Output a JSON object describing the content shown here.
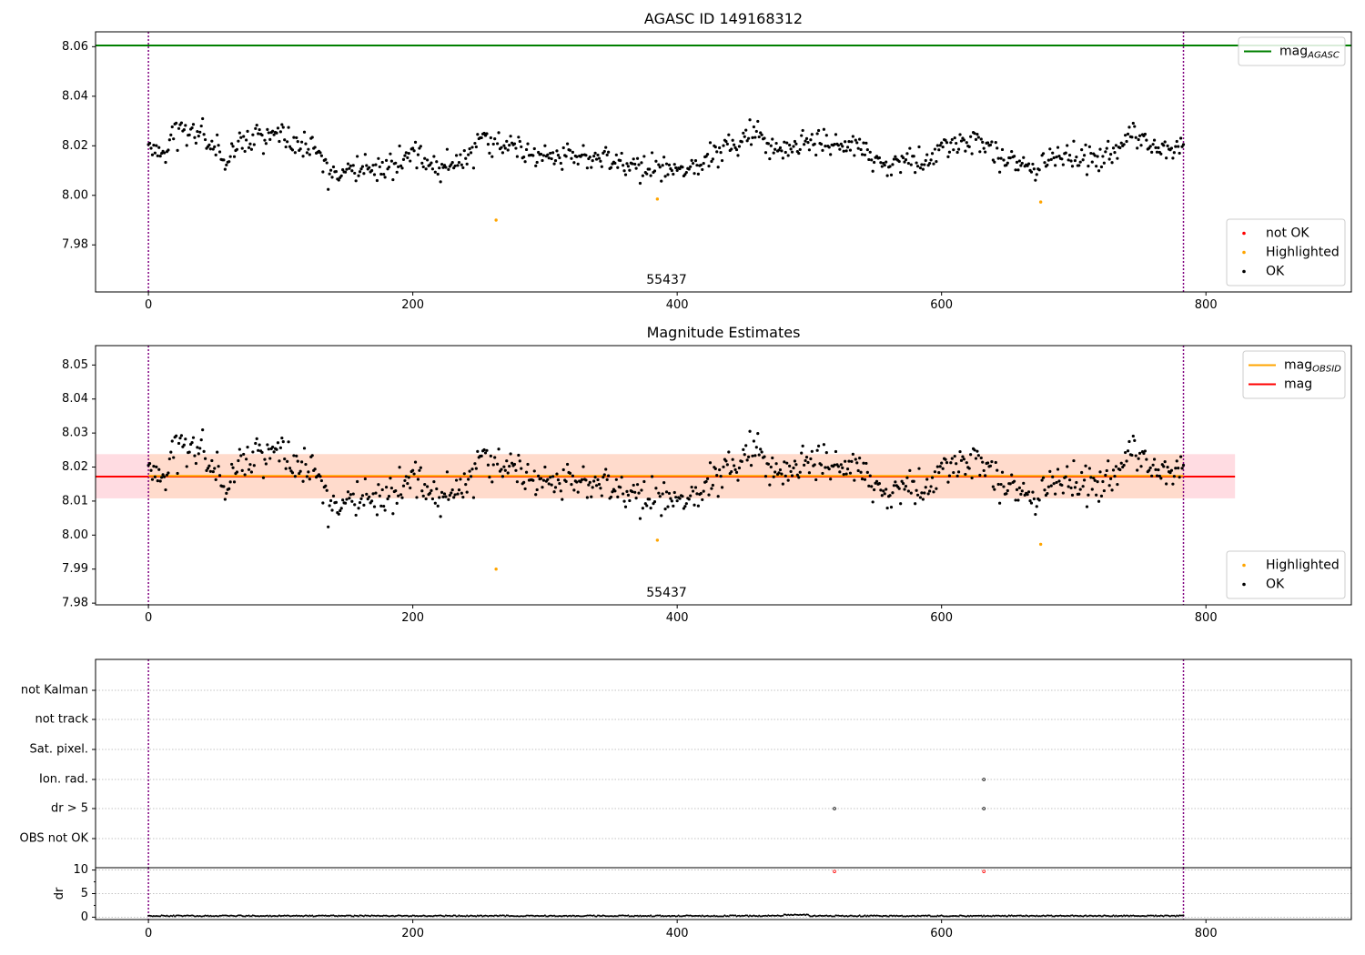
{
  "colors": {
    "ok": "#000000",
    "highlighted": "#ffa500",
    "not_ok": "#ff0000",
    "mag_agasc_line": "#008000",
    "mag_obsid_line": "#ffa500",
    "mag_line": "#ff0000",
    "band_mag": "#ffc0cb",
    "band_obsid": "#ffdab9",
    "obs_boundary": "#800080",
    "grid": "#b0b0b0"
  },
  "chart_data": [
    {
      "type": "scatter",
      "title": "AGASC ID 149168312",
      "annotation": "55437",
      "xlim": [
        -40,
        910
      ],
      "ylim": [
        7.961,
        8.066
      ],
      "xticks": [
        0,
        200,
        400,
        600,
        800
      ],
      "xtick_labels": [
        "0",
        "200",
        "400",
        "600",
        "800"
      ],
      "yticks": [
        7.98,
        8.0,
        8.02,
        8.04,
        8.06
      ],
      "ytick_labels": [
        "7.98",
        "8.00",
        "8.02",
        "8.04",
        "8.06"
      ],
      "observation_boundaries": [
        0,
        783
      ],
      "reference_lines": [
        {
          "name": "mag_AGASC",
          "label_main": "mag",
          "label_sub": "AGASC",
          "y": 8.0605,
          "color": "#008000"
        }
      ],
      "legends": [
        {
          "position": "top-right",
          "entries": [
            {
              "kind": "line",
              "label_main": "mag",
              "label_sub": "AGASC",
              "color": "#008000"
            }
          ]
        },
        {
          "position": "bottom-right",
          "entries": [
            {
              "kind": "marker",
              "label": "not OK",
              "color": "#ff0000"
            },
            {
              "kind": "marker",
              "label": "Highlighted",
              "color": "#ffa500"
            },
            {
              "kind": "marker",
              "label": "OK",
              "color": "#000000"
            }
          ]
        }
      ],
      "series": [
        {
          "name": "OK",
          "values_from": "shared.ok_points"
        },
        {
          "name": "Highlighted",
          "points": [
            [
              263,
              7.99
            ],
            [
              385,
              7.9985
            ],
            [
              675,
              7.9973
            ]
          ]
        },
        {
          "name": "not OK",
          "points": []
        }
      ]
    },
    {
      "type": "scatter",
      "title": "Magnitude Estimates",
      "annotation": "55437",
      "xlim": [
        -40,
        910
      ],
      "ylim": [
        7.9795,
        8.0557
      ],
      "xticks": [
        0,
        200,
        400,
        600,
        800
      ],
      "xtick_labels": [
        "0",
        "200",
        "400",
        "600",
        "800"
      ],
      "yticks": [
        7.98,
        7.99,
        8.0,
        8.01,
        8.02,
        8.03,
        8.04,
        8.05
      ],
      "ytick_labels": [
        "7.98",
        "7.99",
        "8.00",
        "8.01",
        "8.02",
        "8.03",
        "8.04",
        "8.05"
      ],
      "observation_boundaries": [
        0,
        783
      ],
      "bands": [
        {
          "name": "mag",
          "x": [
            -40,
            822
          ],
          "y": [
            8.0108,
            8.0238
          ],
          "color": "#ffc0cb"
        },
        {
          "name": "mag_OBSID",
          "x": [
            0,
            783
          ],
          "y": [
            8.0108,
            8.0238
          ],
          "color": "#ffdab9"
        }
      ],
      "reference_lines": [
        {
          "name": "mag",
          "x": [
            -40,
            822
          ],
          "y": 8.0172,
          "color": "#ff0000"
        },
        {
          "name": "mag_OBSID",
          "x": [
            0,
            783
          ],
          "y": 8.0174,
          "color": "#ffa500"
        }
      ],
      "legends": [
        {
          "position": "top-right",
          "entries": [
            {
              "kind": "line",
              "label_main": "mag",
              "label_sub": "OBSID",
              "color": "#ffa500"
            },
            {
              "kind": "line",
              "label_main": "mag",
              "label_sub": "",
              "color": "#ff0000"
            }
          ]
        },
        {
          "position": "bottom-right",
          "entries": [
            {
              "kind": "marker",
              "label": "Highlighted",
              "color": "#ffa500"
            },
            {
              "kind": "marker",
              "label": "OK",
              "color": "#000000"
            }
          ]
        }
      ],
      "series": [
        {
          "name": "OK",
          "values_from": "shared.ok_points"
        },
        {
          "name": "Highlighted",
          "points": [
            [
              263,
              7.99
            ],
            [
              385,
              7.9985
            ],
            [
              675,
              7.9973
            ]
          ]
        }
      ]
    },
    {
      "type": "scatter",
      "title": "",
      "xlim": [
        -40,
        910
      ],
      "categories": [
        "not Kalman",
        "not track",
        "Sat. pixel.",
        "Ion. rad.",
        "dr > 5",
        "OBS not OK"
      ],
      "observation_boundaries": [
        0,
        783
      ],
      "flags": [
        {
          "category": "Ion. rad.",
          "x": [
            632
          ]
        },
        {
          "category": "dr > 5",
          "x": [
            519,
            632
          ]
        }
      ]
    },
    {
      "type": "scatter",
      "title": "",
      "xlim": [
        -40,
        910
      ],
      "ylim": [
        -0.5,
        10.5
      ],
      "ylabel": "dr",
      "xticks": [
        0,
        200,
        400,
        600,
        800
      ],
      "xtick_labels": [
        "0",
        "200",
        "400",
        "600",
        "800"
      ],
      "yticks": [
        0,
        5,
        10
      ],
      "ytick_labels": [
        "0",
        "5",
        "10"
      ],
      "observation_boundaries": [
        0,
        783
      ],
      "series": [
        {
          "name": "dr",
          "description": "nearly all 0.1-0.5, one point every frame 0-783",
          "typical": 0.25
        },
        {
          "name": "dr > 5",
          "color": "#ff0000",
          "points": [
            [
              519,
              9.7
            ],
            [
              632,
              9.7
            ]
          ]
        }
      ]
    }
  ],
  "shared": {
    "ok_points_rule": "one OK point per frame index 0-783 (excluding highlighted frames), magnitudes 7.999-8.035"
  }
}
